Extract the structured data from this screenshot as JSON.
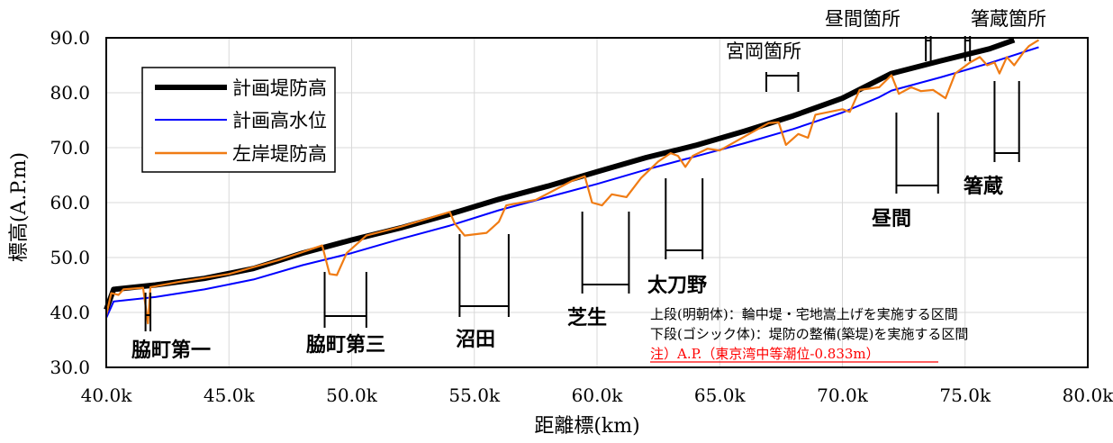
{
  "chart_data": {
    "type": "line",
    "xlabel": "距離標(km)",
    "ylabel": "標高(A.P.m)",
    "xlim": [
      40,
      80
    ],
    "ylim": [
      30,
      90
    ],
    "x_ticks": [
      "40.0k",
      "45.0k",
      "50.0k",
      "55.0k",
      "60.0k",
      "65.0k",
      "70.0k",
      "75.0k",
      "80.0k"
    ],
    "y_ticks": [
      "30.0",
      "40.0",
      "50.0",
      "60.0",
      "70.0",
      "80.0",
      "90.0"
    ],
    "legend_position": "top-left",
    "series": [
      {
        "name": "計画堤防高",
        "color": "#000000",
        "points": [
          [
            40.0,
            40.5
          ],
          [
            40.3,
            44.2
          ],
          [
            42,
            45.0
          ],
          [
            44,
            46.2
          ],
          [
            46,
            48.0
          ],
          [
            48,
            50.8
          ],
          [
            50,
            53.2
          ],
          [
            52,
            55.4
          ],
          [
            54,
            57.9
          ],
          [
            56,
            60.6
          ],
          [
            58,
            63.0
          ],
          [
            60,
            65.6
          ],
          [
            62,
            68.2
          ],
          [
            64,
            70.4
          ],
          [
            66,
            73.0
          ],
          [
            68,
            75.8
          ],
          [
            70,
            79.0
          ],
          [
            71.5,
            82.4
          ],
          [
            72,
            83.5
          ],
          [
            74,
            85.8
          ],
          [
            76,
            88.0
          ],
          [
            77,
            89.6
          ]
        ]
      },
      {
        "name": "計画高水位",
        "color": "#0000ff",
        "points": [
          [
            40.0,
            39.0
          ],
          [
            40.3,
            42.0
          ],
          [
            42,
            42.8
          ],
          [
            44,
            44.2
          ],
          [
            46,
            46.0
          ],
          [
            48,
            48.6
          ],
          [
            50,
            50.8
          ],
          [
            52,
            53.4
          ],
          [
            54,
            55.8
          ],
          [
            56,
            58.6
          ],
          [
            58,
            61.0
          ],
          [
            60,
            63.4
          ],
          [
            62,
            66.0
          ],
          [
            64,
            68.4
          ],
          [
            66,
            70.8
          ],
          [
            68,
            73.4
          ],
          [
            70,
            76.4
          ],
          [
            71.5,
            79.2
          ],
          [
            72,
            80.4
          ],
          [
            74,
            82.8
          ],
          [
            76,
            85.4
          ],
          [
            78,
            88.3
          ]
        ]
      },
      {
        "name": "左岸堤防高",
        "color": "#f07c14",
        "points": [
          [
            40.0,
            39.5
          ],
          [
            40.2,
            43.5
          ],
          [
            40.5,
            43.2
          ],
          [
            40.7,
            44.2
          ],
          [
            41.5,
            44.5
          ],
          [
            41.7,
            38.0
          ],
          [
            41.8,
            44.6
          ],
          [
            43,
            45.6
          ],
          [
            45,
            47.0
          ],
          [
            47,
            49.5
          ],
          [
            48.8,
            52.2
          ],
          [
            49.1,
            47.0
          ],
          [
            49.4,
            46.8
          ],
          [
            49.8,
            50.8
          ],
          [
            50.6,
            54.0
          ],
          [
            52,
            55.6
          ],
          [
            54,
            58.3
          ],
          [
            54.2,
            56.2
          ],
          [
            54.6,
            54.0
          ],
          [
            55.5,
            54.5
          ],
          [
            56,
            56.5
          ],
          [
            56.3,
            59.5
          ],
          [
            57.5,
            60.5
          ],
          [
            59,
            64.0
          ],
          [
            59.5,
            64.8
          ],
          [
            59.8,
            60.0
          ],
          [
            60.2,
            59.5
          ],
          [
            60.6,
            61.5
          ],
          [
            61.2,
            61.0
          ],
          [
            61.8,
            64.5
          ],
          [
            62.5,
            67.5
          ],
          [
            63,
            69.0
          ],
          [
            63.3,
            68.5
          ],
          [
            63.6,
            66.5
          ],
          [
            63.9,
            68.5
          ],
          [
            64.5,
            69.8
          ],
          [
            65,
            69.5
          ],
          [
            66,
            72.0
          ],
          [
            67,
            74.5
          ],
          [
            67.4,
            74.6
          ],
          [
            67.7,
            70.5
          ],
          [
            68.2,
            72.5
          ],
          [
            68.6,
            71.8
          ],
          [
            68.9,
            76.0
          ],
          [
            70,
            77.0
          ],
          [
            70.3,
            76.5
          ],
          [
            70.7,
            80.5
          ],
          [
            71.5,
            81.0
          ],
          [
            72,
            83.2
          ],
          [
            72.3,
            79.8
          ],
          [
            72.8,
            81.0
          ],
          [
            73.2,
            80.3
          ],
          [
            73.7,
            80.5
          ],
          [
            74.2,
            79.0
          ],
          [
            74.6,
            83.5
          ],
          [
            75.2,
            85.5
          ],
          [
            75.6,
            86.5
          ],
          [
            75.9,
            85.0
          ],
          [
            76.2,
            85.5
          ],
          [
            76.4,
            83.5
          ],
          [
            76.7,
            86.5
          ],
          [
            77.0,
            85.0
          ],
          [
            77.4,
            87.5
          ],
          [
            77.6,
            88.5
          ],
          [
            78,
            89.6
          ]
        ]
      }
    ],
    "annotations": {
      "upper_sections": [
        {
          "label": "宮岡箇所",
          "x_start": 66.9,
          "x_end": 68.2
        },
        {
          "label": "昼間箇所",
          "x_start": 73.4,
          "x_end": 73.6
        },
        {
          "label": "箸蔵箇所",
          "x_start": 75.0,
          "x_end": 75.2
        }
      ],
      "lower_sections": [
        {
          "label": "脇町第一",
          "x_start": 41.6,
          "x_end": 41.8
        },
        {
          "label": "脇町第三",
          "x_start": 48.9,
          "x_end": 50.6
        },
        {
          "label": "沼田",
          "x_start": 54.4,
          "x_end": 56.4
        },
        {
          "label": "芝生",
          "x_start": 59.4,
          "x_end": 61.3
        },
        {
          "label": "太刀野",
          "x_start": 62.8,
          "x_end": 64.3
        },
        {
          "label": "昼間",
          "x_start": 72.2,
          "x_end": 73.9
        },
        {
          "label": "箸蔵",
          "x_start": 76.2,
          "x_end": 77.2
        }
      ]
    },
    "notes": [
      "上段(明朝体)：輪中堤・宅地嵩上げを実施する区間",
      "下段(ゴシック体)：堤防の整備(築堤)を実施する区間",
      "注）A.P.（東京湾中等潮位-0.833m）"
    ]
  },
  "colors": {
    "plan_levee": "#000000",
    "plan_flood": "#0000ff",
    "left_levee": "#f07c14",
    "note_red": "#ff0000"
  }
}
